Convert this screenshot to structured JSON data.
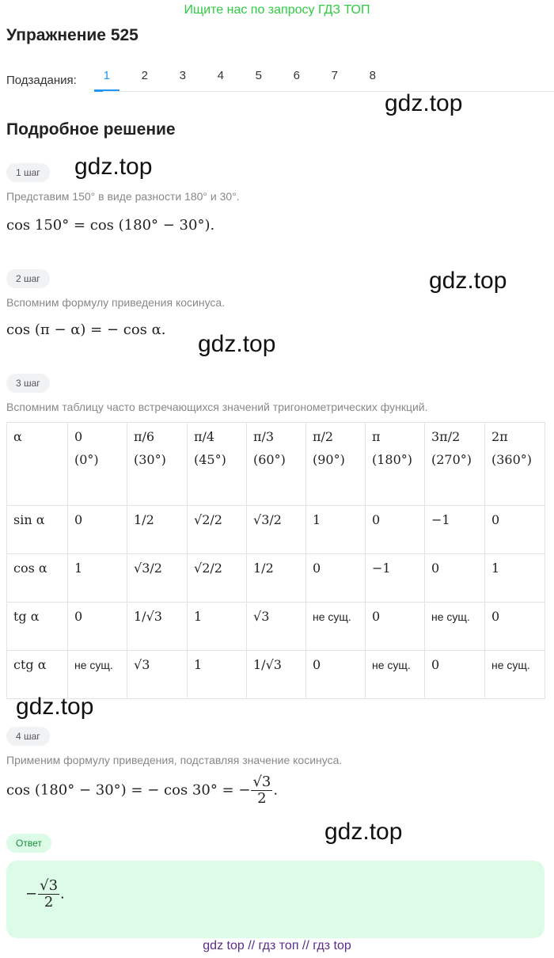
{
  "promo": "Ищите нас по запросу ГДЗ ТОП",
  "title": "Упражнение 525",
  "subtasks": {
    "label": "Подзадания:",
    "items": [
      "1",
      "2",
      "3",
      "4",
      "5",
      "6",
      "7",
      "8"
    ],
    "active": "1"
  },
  "watermark": "gdz.top",
  "solution_title": "Подробное решение",
  "steps": [
    {
      "badge": "1 шаг",
      "text": "Представим 150° в виде разности 180° и 30°.",
      "math": "cos 150° = cos (180° − 30°)."
    },
    {
      "badge": "2 шаг",
      "text": "Вспомним формулу приведения косинуса.",
      "math": "cos (π − α) = − cos α."
    },
    {
      "badge": "3 шаг",
      "text": "Вспомним таблицу часто встречающихся значений тригонометрических функций."
    },
    {
      "badge": "4 шаг",
      "text": "Применим формулу приведения, подставляя значение косинуса.",
      "math": "cos (180° − 30°) = − cos 30° = −",
      "math_num": "√3",
      "math_den": "2",
      "math_end": "."
    }
  ],
  "table": {
    "header": [
      "α",
      "0",
      "π/6",
      "π/4",
      "π/3",
      "π/2",
      "π",
      "3π/2",
      "2π"
    ],
    "degrees": [
      "",
      "(0°)",
      "(30°)",
      "(45°)",
      "(60°)",
      "(90°)",
      "(180°)",
      "(270°)",
      "(360°)"
    ],
    "rows": [
      [
        "sin α",
        "0",
        "1/2",
        "√2/2",
        "√3/2",
        "1",
        "0",
        "−1",
        "0"
      ],
      [
        "cos α",
        "1",
        "√3/2",
        "√2/2",
        "1/2",
        "0",
        "−1",
        "0",
        "1"
      ],
      [
        "tg α",
        "0",
        "1/√3",
        "1",
        "√3",
        "не сущ.",
        "0",
        "не сущ.",
        "0"
      ],
      [
        "ctg α",
        "не сущ.",
        "√3",
        "1",
        "1/√3",
        "0",
        "не сущ.",
        "0",
        "не сущ."
      ]
    ]
  },
  "answer": {
    "badge": "Ответ",
    "sign": "−",
    "num": "√3",
    "den": "2",
    "end": "."
  },
  "footer": "gdz top  //  гдз топ  //  гдз top",
  "colors": {
    "accent": "#2196f3",
    "promo": "#2ecc40",
    "answer_bg": "#dcfce7",
    "footer": "#5b2c8c"
  }
}
